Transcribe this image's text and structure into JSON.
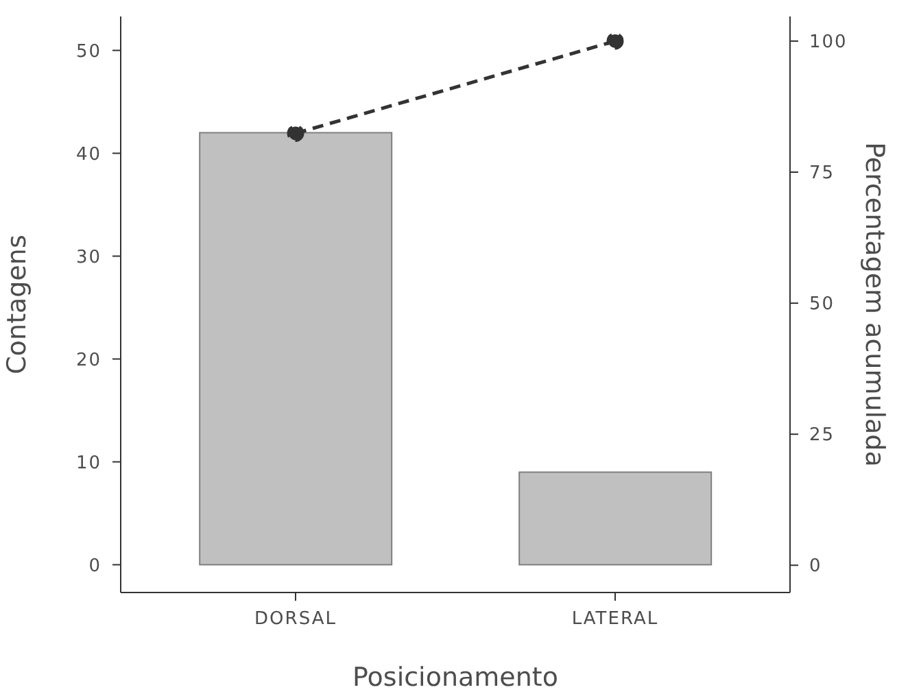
{
  "chart_data": {
    "type": "bar",
    "xlabel": "Posicionamento",
    "ylabel": "Contagens",
    "y2label": "Percentagem acumulada",
    "categories": [
      "DORSAL",
      "LATERAL"
    ],
    "series": [
      {
        "color": "#c0c0c0",
        "values": [
          42,
          9
        ]
      },
      {
        "type": "line",
        "axis": "y2",
        "color": "#333333",
        "values": [
          82.4,
          100
        ],
        "line_style": "dashed",
        "marker": "circle"
      }
    ],
    "ylim": [
      -2.7,
      53.3
    ],
    "yticks": [
      0,
      10,
      20,
      30,
      40,
      50
    ],
    "y2lim": [
      -5.2,
      104.7
    ],
    "y2ticks": [
      0,
      25,
      50,
      75,
      100
    ],
    "grid": false,
    "legend": false
  }
}
